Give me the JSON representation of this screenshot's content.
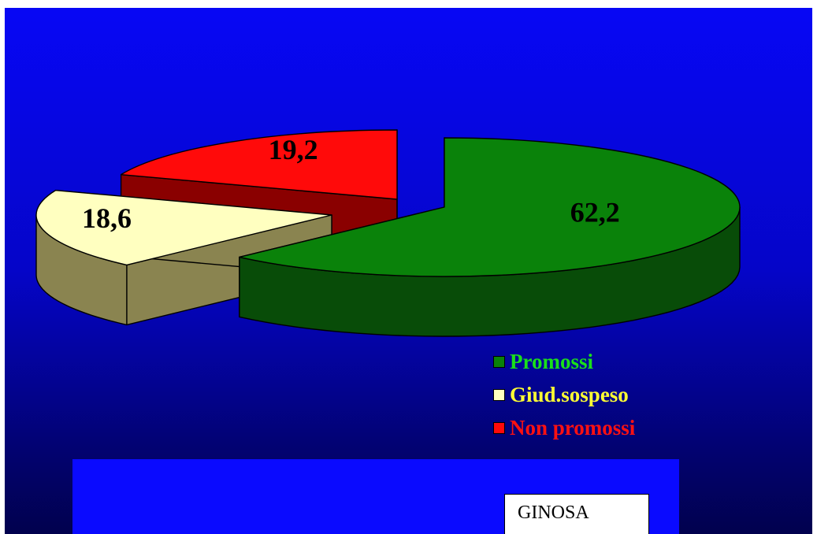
{
  "chart_data": {
    "type": "pie",
    "style": "3d-exploded",
    "categories": [
      "Promossi",
      "Giud.sospeso",
      "Non promossi"
    ],
    "values": [
      62.2,
      18.6,
      19.2
    ],
    "value_labels": [
      "62,2",
      "18,6",
      "19,2"
    ],
    "colors": {
      "Promossi": {
        "top": "#0a820a",
        "side": "#084c08",
        "text": "#1adf1a"
      },
      "Giud.sospeso": {
        "top": "#ffffc0",
        "side": "#8a8450",
        "text": "#ffff33"
      },
      "Non promossi": {
        "top": "#ff0a0a",
        "side": "#8a0000",
        "text": "#ff1111"
      }
    },
    "legend_position": "bottom-right"
  },
  "location_label": "GINOSA"
}
